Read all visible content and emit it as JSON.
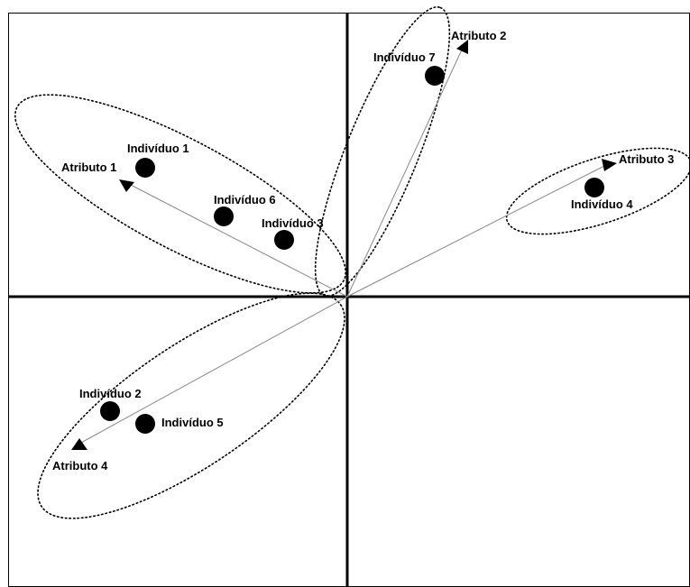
{
  "colors": {
    "ink": "#000000",
    "background": "#ffffff"
  },
  "attributes": [
    {
      "label": "Atributo 1"
    },
    {
      "label": "Atributo 2"
    },
    {
      "label": "Atributo 3"
    },
    {
      "label": "Atributo 4"
    }
  ],
  "individuals": [
    {
      "label": "Indivíduo 1"
    },
    {
      "label": "Indivíduo 2"
    },
    {
      "label": "Indivíduo 3"
    },
    {
      "label": "Indivíduo 4"
    },
    {
      "label": "Indivíduo 5"
    },
    {
      "label": "Indivíduo 6"
    },
    {
      "label": "Indivíduo 7"
    }
  ]
}
